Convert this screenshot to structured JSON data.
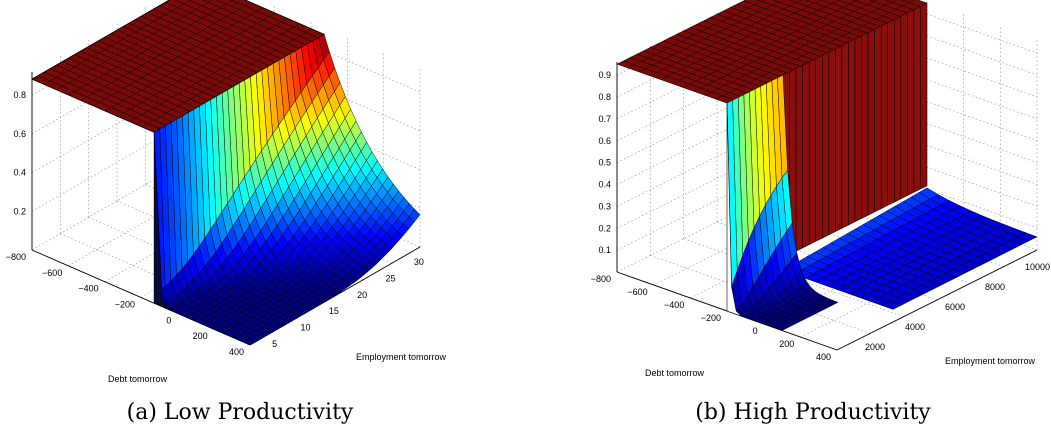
{
  "chart_data": [
    {
      "type": "surface",
      "caption": "(a) Low Productivity",
      "xlabel": "Employment tomorrow",
      "ylabel": "Debt tomorrow",
      "x_ticks": [
        "5",
        "10",
        "15",
        "20",
        "25",
        "30"
      ],
      "y_ticks": [
        "−800",
        "−600",
        "−400",
        "−200",
        "0",
        "200",
        "400"
      ],
      "z_ticks": [
        "0.2",
        "0.4",
        "0.6",
        "0.8"
      ],
      "xlim": [
        2,
        34
      ],
      "ylim": [
        -900,
        450
      ],
      "zlim": [
        0,
        1
      ],
      "grid": true,
      "colormap": "jet",
      "edge_color": "#000000",
      "plateau_color": "#800000"
    },
    {
      "type": "surface",
      "caption": "(b) High Productivity",
      "xlabel": "Employment tomorrow",
      "ylabel": "Debt tomorrow",
      "x_ticks": [
        "2000",
        "4000",
        "6000",
        "8000",
        "10000"
      ],
      "y_ticks": [
        "−800",
        "−600",
        "−400",
        "−200",
        "0",
        "200",
        "400"
      ],
      "z_ticks": [
        "0.1",
        "0.2",
        "0.3",
        "0.4",
        "0.5",
        "0.6",
        "0.7",
        "0.8",
        "0.9"
      ],
      "xlim": [
        0,
        11000
      ],
      "ylim": [
        -900,
        450
      ],
      "zlim": [
        0,
        1
      ],
      "grid": true,
      "colormap": "jet",
      "edge_color": "#000000",
      "plateau_color": "#800000"
    }
  ]
}
